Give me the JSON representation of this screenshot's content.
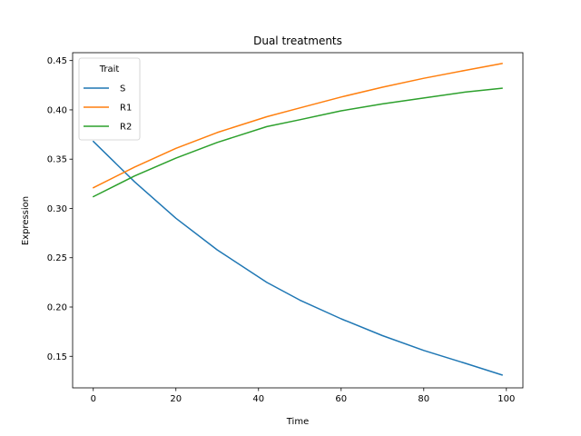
{
  "chart_data": {
    "type": "line",
    "title": "Dual treatments",
    "xlabel": "Time",
    "ylabel": "Expression",
    "xlim": [
      -5,
      104
    ],
    "ylim": [
      0.118,
      0.458
    ],
    "xticks": [
      0,
      20,
      40,
      60,
      80,
      100
    ],
    "yticks": [
      0.15,
      0.2,
      0.25,
      0.3,
      0.35,
      0.4,
      0.45
    ],
    "ytick_labels": [
      "0.15",
      "0.20",
      "0.25",
      "0.30",
      "0.35",
      "0.40",
      "0.45"
    ],
    "grid": false,
    "legend": {
      "title": "Trait",
      "placement": "top-left"
    },
    "x": [
      0,
      10,
      20,
      30,
      42,
      50,
      60,
      70,
      80,
      90,
      99
    ],
    "series": [
      {
        "name": "S",
        "color": "#1f77b4",
        "values": [
          0.368,
          0.327,
          0.29,
          0.258,
          0.225,
          0.207,
          0.188,
          0.171,
          0.156,
          0.143,
          0.131
        ]
      },
      {
        "name": "R1",
        "color": "#ff7f0e",
        "values": [
          0.321,
          0.342,
          0.361,
          0.377,
          0.393,
          0.402,
          0.413,
          0.423,
          0.432,
          0.44,
          0.447
        ]
      },
      {
        "name": "R2",
        "color": "#2ca02c",
        "values": [
          0.312,
          0.333,
          0.351,
          0.367,
          0.383,
          0.39,
          0.399,
          0.406,
          0.412,
          0.418,
          0.422
        ]
      }
    ]
  }
}
